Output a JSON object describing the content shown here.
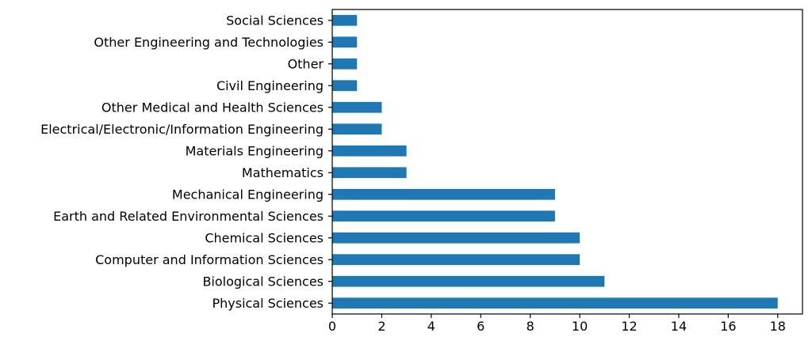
{
  "chart_data": {
    "type": "bar",
    "orientation": "horizontal",
    "categories": [
      "Physical Sciences",
      "Biological Sciences",
      "Computer and Information Sciences",
      "Chemical Sciences",
      "Earth and Related Environmental Sciences",
      "Mechanical Engineering",
      "Mathematics",
      "Materials Engineering",
      "Electrical/Electronic/Information Engineering",
      "Other Medical and Health Sciences",
      "Civil Engineering",
      "Other",
      "Other Engineering and Technologies",
      "Social Sciences"
    ],
    "values": [
      18,
      11,
      10,
      10,
      9,
      9,
      3,
      3,
      2,
      2,
      1,
      1,
      1,
      1
    ],
    "xlim": [
      0,
      19
    ],
    "xticks": [
      0,
      2,
      4,
      6,
      8,
      10,
      12,
      14,
      16,
      18
    ],
    "title": "",
    "xlabel": "",
    "ylabel": "",
    "grid": false,
    "bar_color": "#1f77b4"
  }
}
